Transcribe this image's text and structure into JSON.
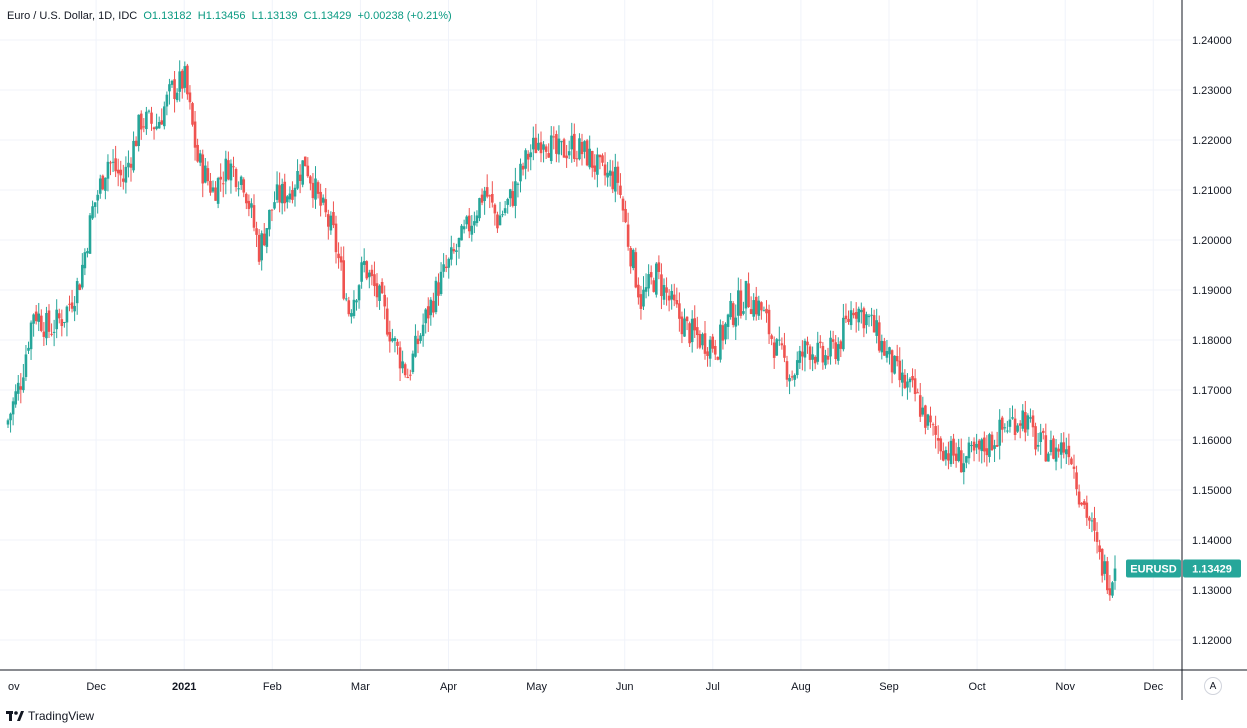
{
  "legend": {
    "symbol": "Euro / U.S. Dollar, 1D, IDC",
    "open": "O1.13182",
    "high": "H1.13456",
    "low": "L1.13139",
    "close": "C1.13429",
    "change": "+0.00238 (+0.21%)"
  },
  "brand": {
    "name": "TradingView"
  },
  "scale_button": {
    "label": "A"
  },
  "colors": {
    "up": "#26a69a",
    "down": "#ef5350",
    "grid": "#f0f3fa",
    "badge": "#26a69a"
  },
  "chart_data": {
    "type": "candlestick",
    "x_labels": [
      "ov",
      "Dec",
      "2021",
      "Feb",
      "Mar",
      "Apr",
      "May",
      "Jun",
      "Jul",
      "Aug",
      "Sep",
      "Oct",
      "Nov",
      "Dec"
    ],
    "y_ticks": [
      "1.12000",
      "1.13000",
      "1.14000",
      "1.15000",
      "1.16000",
      "1.17000",
      "1.18000",
      "1.19000",
      "1.20000",
      "1.21000",
      "1.22000",
      "1.23000",
      "1.24000"
    ],
    "ylim": [
      1.114,
      1.248
    ],
    "last_price": {
      "label": "EURUSD",
      "value": "1.13429",
      "price": 1.13429
    },
    "close_path": [
      [
        0,
        1.164
      ],
      [
        5,
        1.172
      ],
      [
        10,
        1.186
      ],
      [
        16,
        1.182
      ],
      [
        22,
        1.185
      ],
      [
        28,
        1.192
      ],
      [
        33,
        1.206
      ],
      [
        39,
        1.216
      ],
      [
        45,
        1.212
      ],
      [
        52,
        1.224
      ],
      [
        58,
        1.223
      ],
      [
        64,
        1.23
      ],
      [
        69,
        1.232
      ],
      [
        74,
        1.216
      ],
      [
        80,
        1.21
      ],
      [
        86,
        1.215
      ],
      [
        92,
        1.212
      ],
      [
        98,
        1.198
      ],
      [
        104,
        1.208
      ],
      [
        110,
        1.21
      ],
      [
        116,
        1.216
      ],
      [
        121,
        1.208
      ],
      [
        127,
        1.201
      ],
      [
        133,
        1.186
      ],
      [
        139,
        1.195
      ],
      [
        145,
        1.188
      ],
      [
        151,
        1.179
      ],
      [
        156,
        1.173
      ],
      [
        162,
        1.183
      ],
      [
        168,
        1.191
      ],
      [
        174,
        1.197
      ],
      [
        180,
        1.203
      ],
      [
        186,
        1.21
      ],
      [
        191,
        1.204
      ],
      [
        197,
        1.209
      ],
      [
        203,
        1.217
      ],
      [
        209,
        1.221
      ],
      [
        214,
        1.217
      ],
      [
        220,
        1.219
      ],
      [
        226,
        1.217
      ],
      [
        232,
        1.213
      ],
      [
        238,
        1.212
      ],
      [
        242,
        1.2
      ],
      [
        247,
        1.188
      ],
      [
        253,
        1.193
      ],
      [
        259,
        1.187
      ],
      [
        265,
        1.182
      ],
      [
        271,
        1.18
      ],
      [
        277,
        1.179
      ],
      [
        282,
        1.185
      ],
      [
        288,
        1.189
      ],
      [
        294,
        1.186
      ],
      [
        300,
        1.178
      ],
      [
        306,
        1.173
      ],
      [
        312,
        1.179
      ],
      [
        318,
        1.176
      ],
      [
        324,
        1.179
      ],
      [
        330,
        1.187
      ],
      [
        336,
        1.184
      ],
      [
        342,
        1.178
      ],
      [
        348,
        1.172
      ],
      [
        354,
        1.169
      ],
      [
        360,
        1.162
      ],
      [
        366,
        1.158
      ],
      [
        372,
        1.156
      ],
      [
        378,
        1.157
      ],
      [
        384,
        1.16
      ],
      [
        390,
        1.163
      ],
      [
        396,
        1.165
      ],
      [
        402,
        1.159
      ],
      [
        408,
        1.158
      ],
      [
        414,
        1.159
      ],
      [
        418,
        1.15
      ],
      [
        422,
        1.144
      ],
      [
        426,
        1.136
      ],
      [
        430,
        1.1319
      ],
      [
        432,
        1.1343
      ]
    ]
  }
}
